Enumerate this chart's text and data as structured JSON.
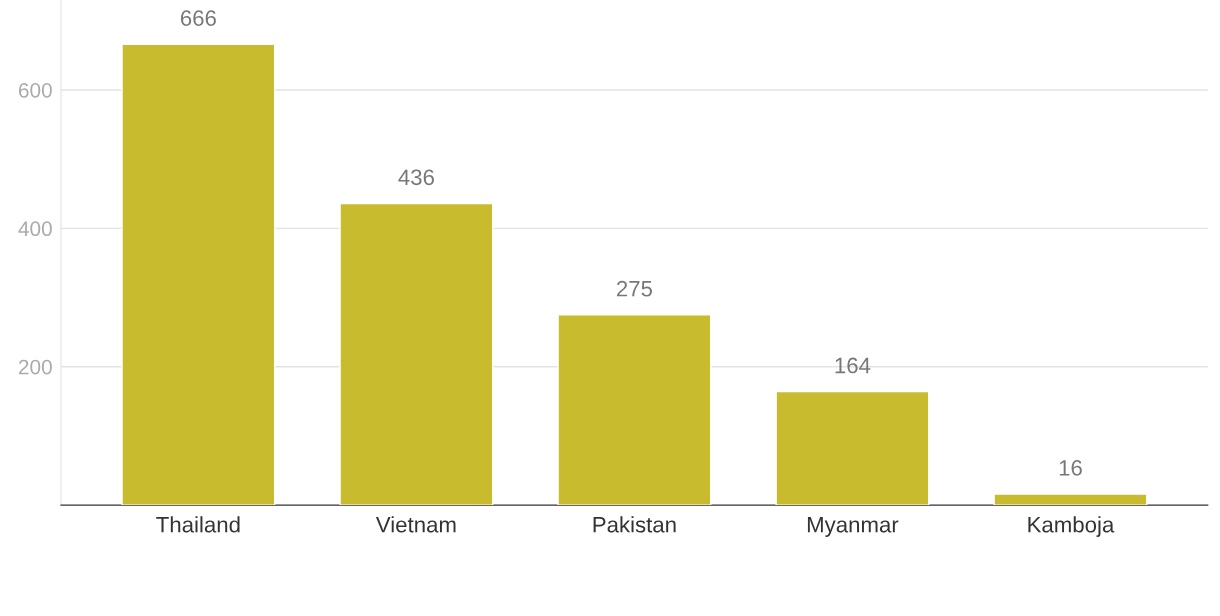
{
  "chart_data": {
    "type": "bar",
    "categories": [
      "Thailand",
      "Vietnam",
      "Pakistan",
      "Myanmar",
      "Kamboja"
    ],
    "values": [
      666,
      436,
      275,
      164,
      16
    ],
    "color": "#c8bb2e",
    "ylim": [
      0,
      730
    ],
    "yticks": [
      200,
      400,
      600
    ],
    "grid": "y",
    "data_labels": true
  }
}
